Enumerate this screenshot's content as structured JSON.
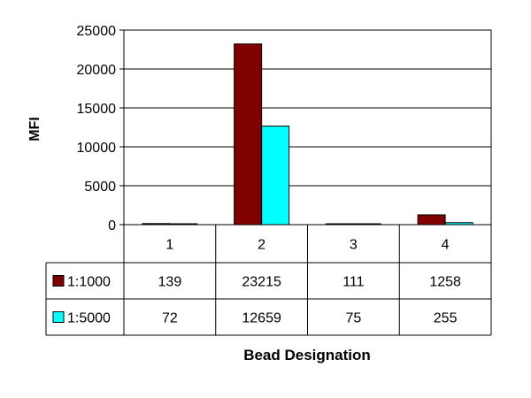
{
  "chart_data": {
    "type": "bar",
    "title": "",
    "xlabel": "Bead Designation",
    "ylabel": "MFI",
    "ylim": [
      0,
      25000
    ],
    "yticks": [
      0,
      5000,
      10000,
      15000,
      20000,
      25000
    ],
    "categories": [
      "1",
      "2",
      "3",
      "4"
    ],
    "grid": true,
    "legend": "data-table-rows",
    "series": [
      {
        "name": "1:1000",
        "color": "#800000",
        "values": [
          139,
          23215,
          111,
          1258
        ]
      },
      {
        "name": "1:5000",
        "color": "#00ffff",
        "values": [
          72,
          12659,
          75,
          255
        ]
      }
    ]
  }
}
